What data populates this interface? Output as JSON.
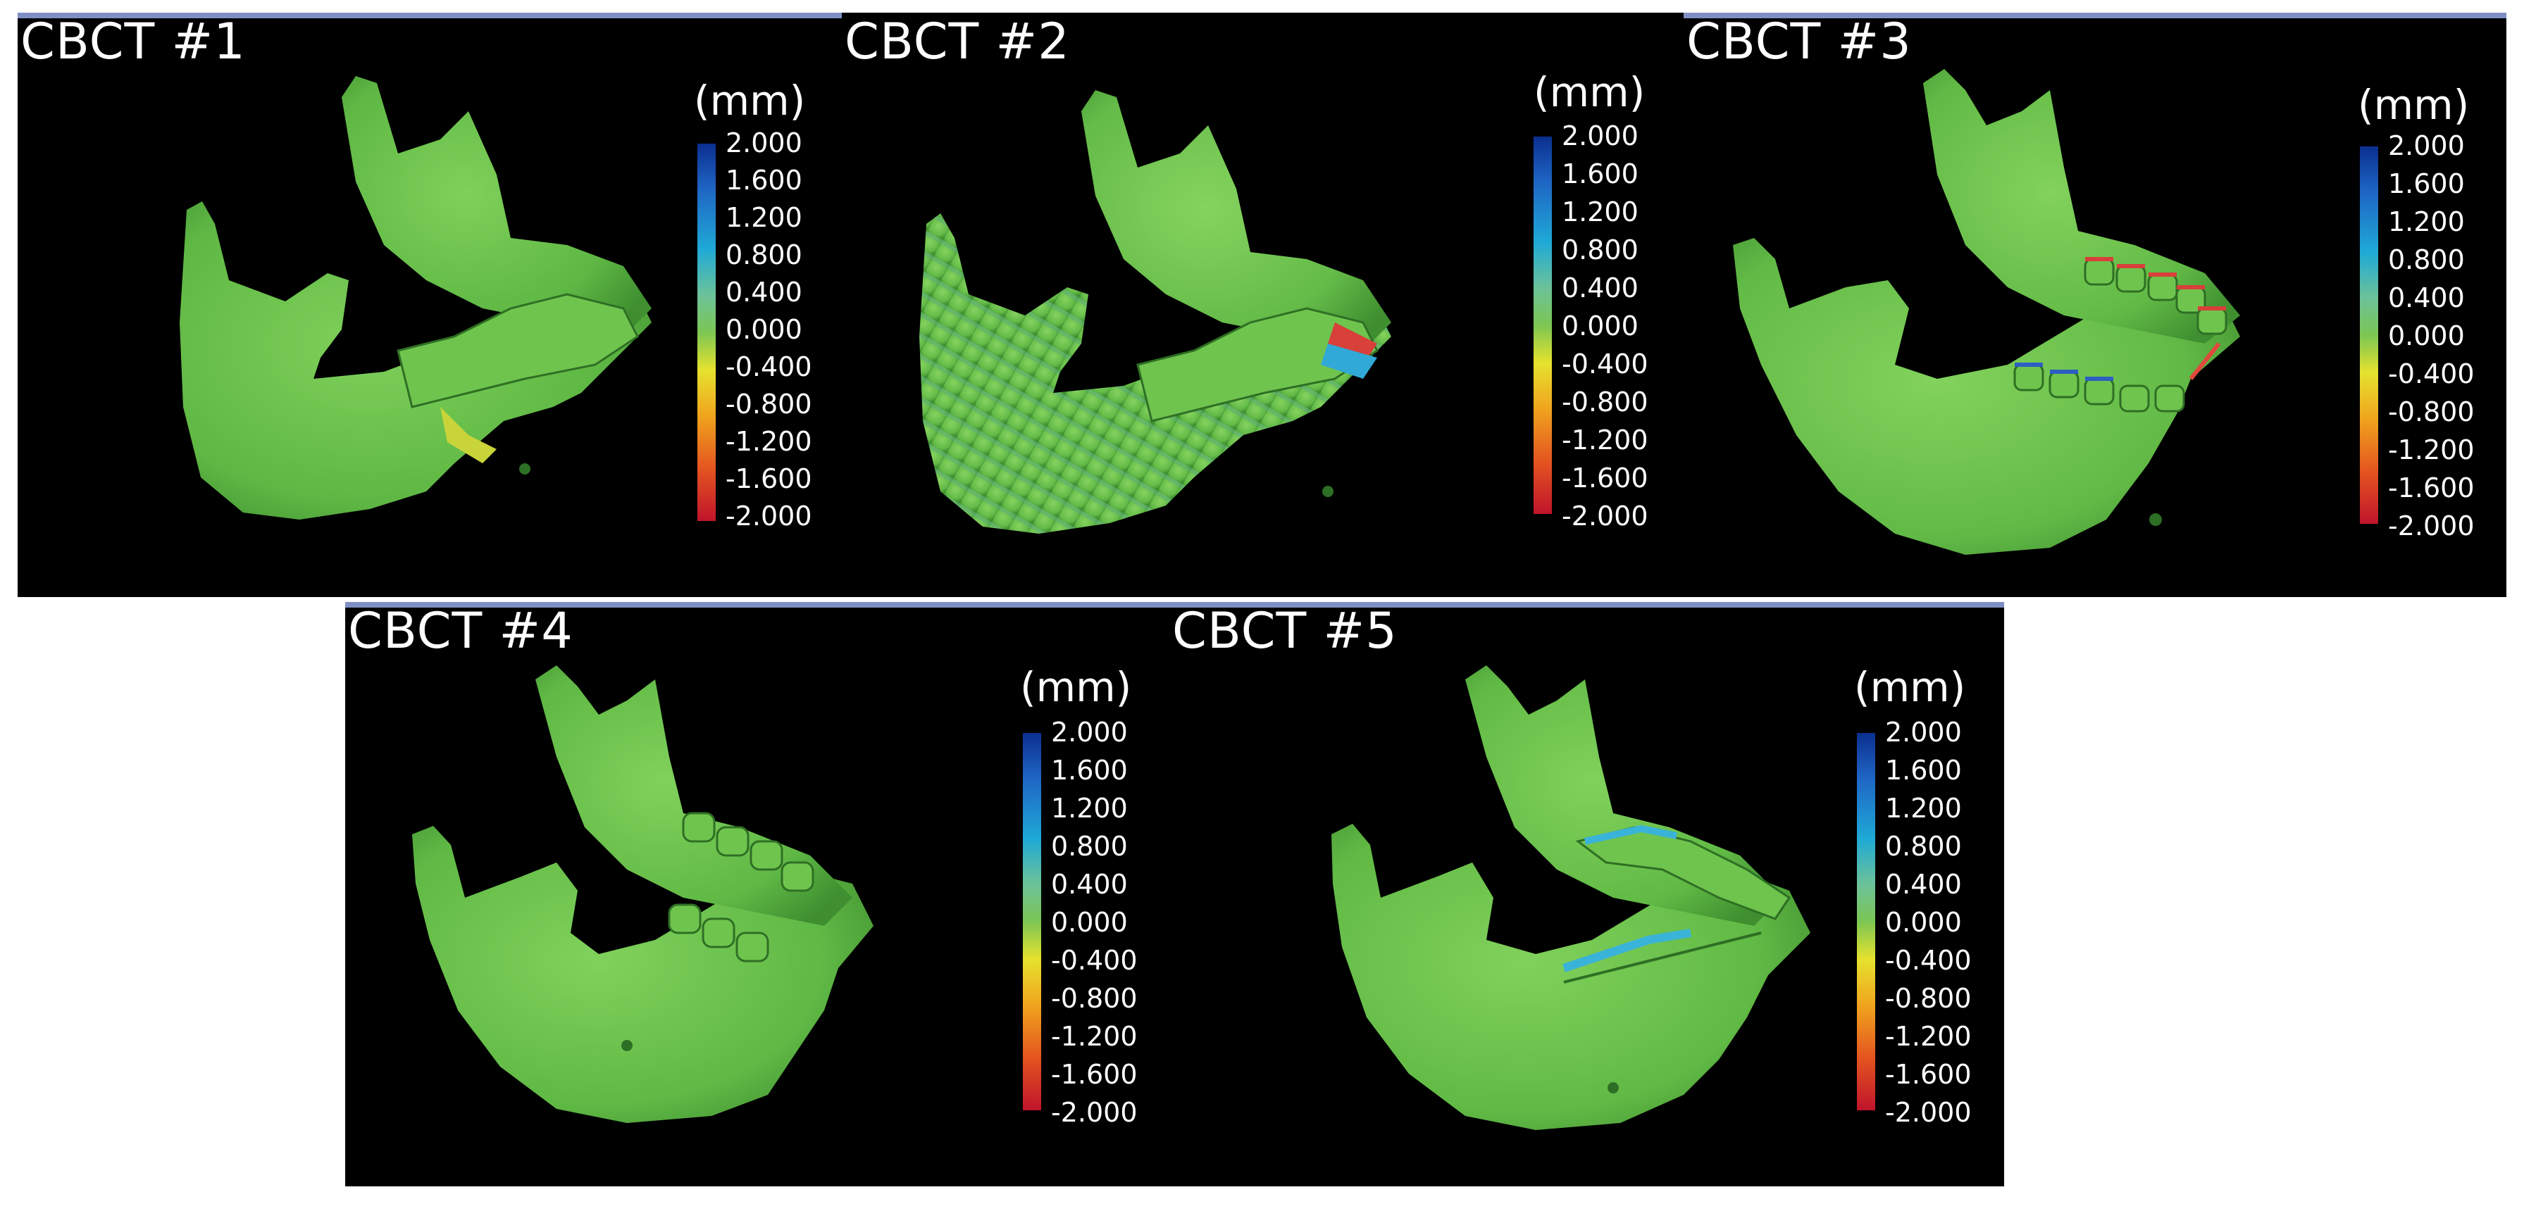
{
  "panels": [
    {
      "title": "CBCT #1",
      "unit": "(mm)"
    },
    {
      "title": "CBCT #2",
      "unit": "(mm)"
    },
    {
      "title": "CBCT #3",
      "unit": "(mm)"
    },
    {
      "title": "CBCT #4",
      "unit": "(mm)"
    },
    {
      "title": "CBCT #5",
      "unit": "(mm)"
    }
  ],
  "colorbar": {
    "ticks": [
      "2.000",
      "1.600",
      "1.200",
      "0.800",
      "0.400",
      "0.000",
      "-0.400",
      "-0.800",
      "-1.200",
      "-1.600",
      "-2.000"
    ],
    "colors": [
      "#0b2f8f",
      "#1f65c4",
      "#1fa9d6",
      "#6bc29a",
      "#7cc653",
      "#e6e22e",
      "#f0a51e",
      "#e45520",
      "#c0142b"
    ]
  },
  "colors": {
    "background": "#000000",
    "bone_green": "#66c24a",
    "topbar": "#7f8fc4"
  }
}
